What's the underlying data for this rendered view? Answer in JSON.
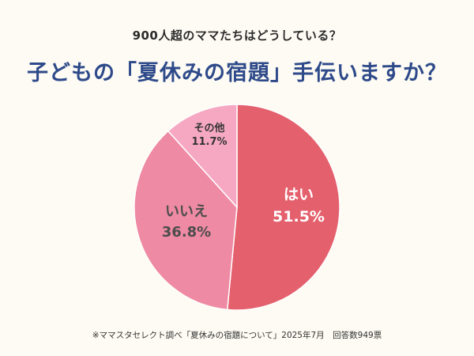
{
  "header": {
    "subtitle": "900人超のママたちはどうしている？",
    "title": "子どもの「夏休みの宿題」手伝いますか？"
  },
  "footer": {
    "note": "※ママスタセレクト調べ「夏休みの宿題について」2025年7月　回答数949票"
  },
  "chart_data": {
    "type": "pie",
    "title": "子どもの「夏休みの宿題」手伝いますか？",
    "slices": [
      {
        "label": "はい",
        "value": 51.5,
        "value_text": "51.5%",
        "color": "#e4606d",
        "label_color": "#ffffff"
      },
      {
        "label": "いいえ",
        "value": 36.8,
        "value_text": "36.8%",
        "color": "#ee8aa3",
        "label_color": "#4d4d4d"
      },
      {
        "label": "その他",
        "value": 11.7,
        "value_text": "11.7%",
        "color": "#f6a8c3",
        "label_color": "#333333"
      }
    ],
    "start": "12 o'clock",
    "direction": "clockwise"
  }
}
